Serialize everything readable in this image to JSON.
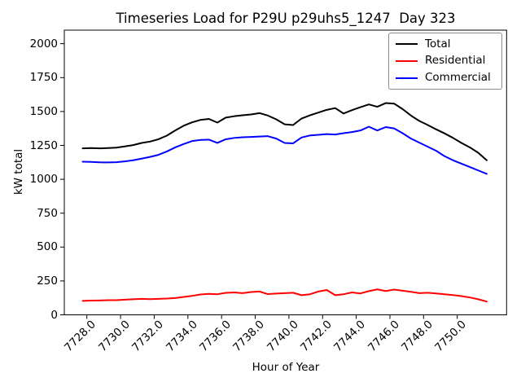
{
  "chart_data": {
    "type": "line",
    "title": "Timeseries Load for P29U p29uhs5_1247  Day 323",
    "xlabel": "Hour of Year",
    "ylabel": "kW total",
    "xlim": [
      7726.66,
      7752.93
    ],
    "ylim": [
      0,
      2100
    ],
    "grid": false,
    "legend_position": "upper right",
    "xticks": {
      "values": [
        7728,
        7730,
        7732,
        7734,
        7736,
        7738,
        7740,
        7742,
        7744,
        7746,
        7748,
        7750
      ],
      "labels": [
        "7728.0",
        "7730.0",
        "7732.0",
        "7734.0",
        "7736.0",
        "7738.0",
        "7740.0",
        "7742.0",
        "7744.0",
        "7746.0",
        "7748.0",
        "7750.0"
      ],
      "rotation": 45
    },
    "yticks": {
      "values": [
        0,
        250,
        500,
        750,
        1000,
        1250,
        1500,
        1750,
        2000
      ],
      "labels": [
        "0",
        "250",
        "500",
        "750",
        "1000",
        "1250",
        "1500",
        "1750",
        "2000"
      ]
    },
    "x": [
      7727.75,
      7728.25,
      7728.75,
      7729.25,
      7729.75,
      7730.25,
      7730.75,
      7731.25,
      7731.75,
      7732.25,
      7732.75,
      7733.25,
      7733.75,
      7734.25,
      7734.75,
      7735.25,
      7735.75,
      7736.25,
      7736.75,
      7737.25,
      7737.75,
      7738.25,
      7738.75,
      7739.25,
      7739.75,
      7740.25,
      7740.75,
      7741.25,
      7741.75,
      7742.25,
      7742.75,
      7743.25,
      7743.75,
      7744.25,
      7744.75,
      7745.25,
      7745.75,
      7746.25,
      7746.75,
      7747.25,
      7747.75,
      7748.25,
      7748.75,
      7749.25,
      7749.75,
      7750.25,
      7750.75,
      7751.25,
      7751.75
    ],
    "series": [
      {
        "name": "Total",
        "color": "#000000",
        "values": [
          1228,
          1230,
          1228,
          1230,
          1233,
          1242,
          1252,
          1268,
          1278,
          1295,
          1322,
          1360,
          1395,
          1420,
          1438,
          1445,
          1418,
          1455,
          1465,
          1472,
          1478,
          1488,
          1470,
          1442,
          1405,
          1400,
          1448,
          1472,
          1492,
          1512,
          1525,
          1485,
          1510,
          1532,
          1552,
          1535,
          1562,
          1558,
          1518,
          1470,
          1430,
          1400,
          1368,
          1338,
          1305,
          1268,
          1235,
          1195,
          1140
        ]
      },
      {
        "name": "Residential",
        "color": "#ff0000",
        "values": [
          103,
          105,
          106,
          108,
          108,
          112,
          115,
          118,
          116,
          118,
          120,
          124,
          132,
          140,
          150,
          155,
          152,
          162,
          165,
          160,
          168,
          172,
          153,
          157,
          160,
          163,
          145,
          152,
          172,
          183,
          145,
          152,
          165,
          158,
          175,
          188,
          176,
          186,
          178,
          170,
          160,
          163,
          158,
          152,
          146,
          138,
          128,
          115,
          98
        ]
      },
      {
        "name": "Commercial",
        "color": "#0000ff",
        "values": [
          1130,
          1128,
          1125,
          1124,
          1126,
          1132,
          1140,
          1152,
          1165,
          1180,
          1205,
          1235,
          1260,
          1282,
          1290,
          1292,
          1268,
          1295,
          1305,
          1310,
          1312,
          1315,
          1318,
          1300,
          1268,
          1265,
          1308,
          1323,
          1328,
          1333,
          1330,
          1340,
          1348,
          1360,
          1388,
          1360,
          1385,
          1375,
          1340,
          1300,
          1270,
          1240,
          1210,
          1170,
          1140,
          1115,
          1090,
          1065,
          1040
        ]
      }
    ]
  }
}
